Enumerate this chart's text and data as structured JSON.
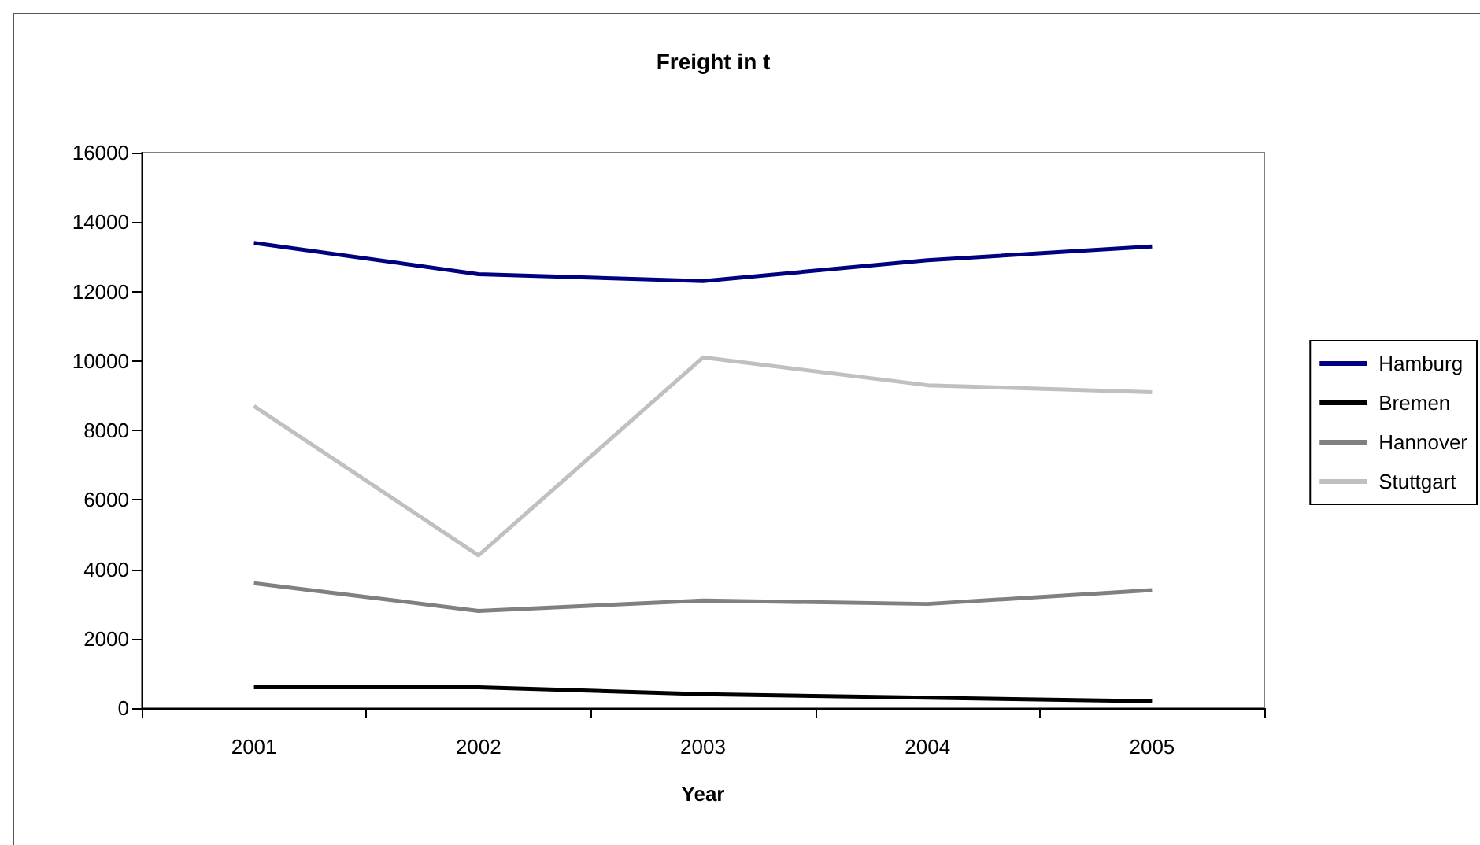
{
  "chart_data": {
    "type": "line",
    "title": "Freight in t",
    "xlabel": "Year",
    "categories": [
      "2001",
      "2002",
      "2003",
      "2004",
      "2005"
    ],
    "series": [
      {
        "name": "Hamburg",
        "color": "#000080",
        "values": [
          13400,
          12500,
          12300,
          12900,
          13300
        ]
      },
      {
        "name": "Bremen",
        "color": "#000000",
        "values": [
          600,
          600,
          400,
          300,
          200
        ]
      },
      {
        "name": "Hannover",
        "color": "#808080",
        "values": [
          3600,
          2800,
          3100,
          3000,
          3400
        ]
      },
      {
        "name": "Stuttgart",
        "color": "#c0c0c0",
        "values": [
          8700,
          4400,
          10100,
          9300,
          9100
        ]
      }
    ],
    "ylim": [
      0,
      16000
    ],
    "yticks": [
      0,
      2000,
      4000,
      6000,
      8000,
      10000,
      12000,
      14000,
      16000
    ],
    "grid": false,
    "legend": "right",
    "marker": "none",
    "line_style": "solid"
  }
}
